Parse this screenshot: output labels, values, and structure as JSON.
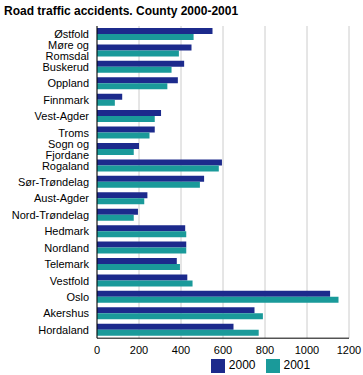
{
  "chart_data": {
    "type": "bar",
    "title": "Road traffic accidents. County 2000-2001",
    "orientation": "horizontal",
    "categories": [
      "Østfold",
      "Møre og Romsdal",
      "Buskerud",
      "Oppland",
      "Finnmark",
      "Vest-Agder",
      "Troms",
      "Sogn og Fjordane",
      "Rogaland",
      "Sør-Trøndelag",
      "Aust-Agder",
      "Nord-Trøndelag",
      "Hedmark",
      "Nordland",
      "Telemark",
      "Vestfold",
      "Oslo",
      "Akershus",
      "Hordaland"
    ],
    "series": [
      {
        "name": "2000",
        "color": "#1c2a8c",
        "values": [
          550,
          450,
          415,
          385,
          120,
          305,
          275,
          200,
          595,
          510,
          240,
          195,
          420,
          425,
          380,
          430,
          1110,
          750,
          650
        ]
      },
      {
        "name": "2001",
        "color": "#1a9a9a",
        "values": [
          460,
          390,
          355,
          335,
          85,
          275,
          250,
          175,
          580,
          490,
          225,
          175,
          425,
          425,
          395,
          455,
          1150,
          790,
          770
        ]
      }
    ],
    "xlim": [
      0,
      1200
    ],
    "xticks": [
      0,
      200,
      400,
      600,
      800,
      1000,
      1200
    ],
    "grid": true,
    "legend": "bottom"
  }
}
